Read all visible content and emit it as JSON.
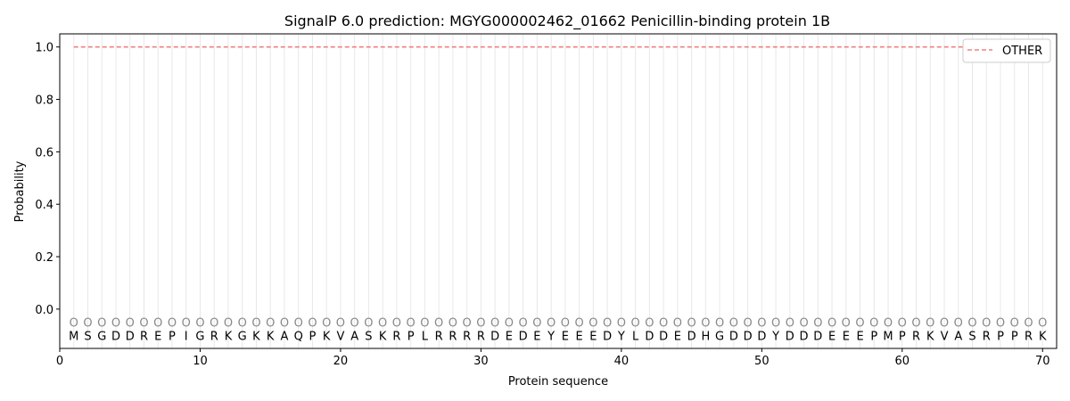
{
  "chart_data": {
    "type": "line",
    "title": "SignalP 6.0 prediction: MGYG000002462_01662 Penicillin-binding protein 1B",
    "xlabel": "Protein sequence",
    "ylabel": "Probability",
    "xlim": [
      0,
      71
    ],
    "ylim": [
      -0.15,
      1.05
    ],
    "xticks": [
      0,
      10,
      20,
      30,
      40,
      50,
      60,
      70
    ],
    "yticks": [
      0.0,
      0.2,
      0.4,
      0.6,
      0.8,
      1.0
    ],
    "sequence": "MSGDDREPIGRKGKKAQPKVASKRPLRRRRDEDEYEEEDYLDDEDHGDDDYDDDEEEPMPRKVASRPPRK",
    "prediction_label": "O",
    "series": [
      {
        "name": "OTHER",
        "color": "#f08080",
        "style": "dashed",
        "x_start": 1,
        "x_end": 70,
        "value": 1.0
      }
    ],
    "legend": {
      "placement": "top-right",
      "entries": [
        "OTHER"
      ]
    },
    "grid": "vertical lines at each residue"
  }
}
